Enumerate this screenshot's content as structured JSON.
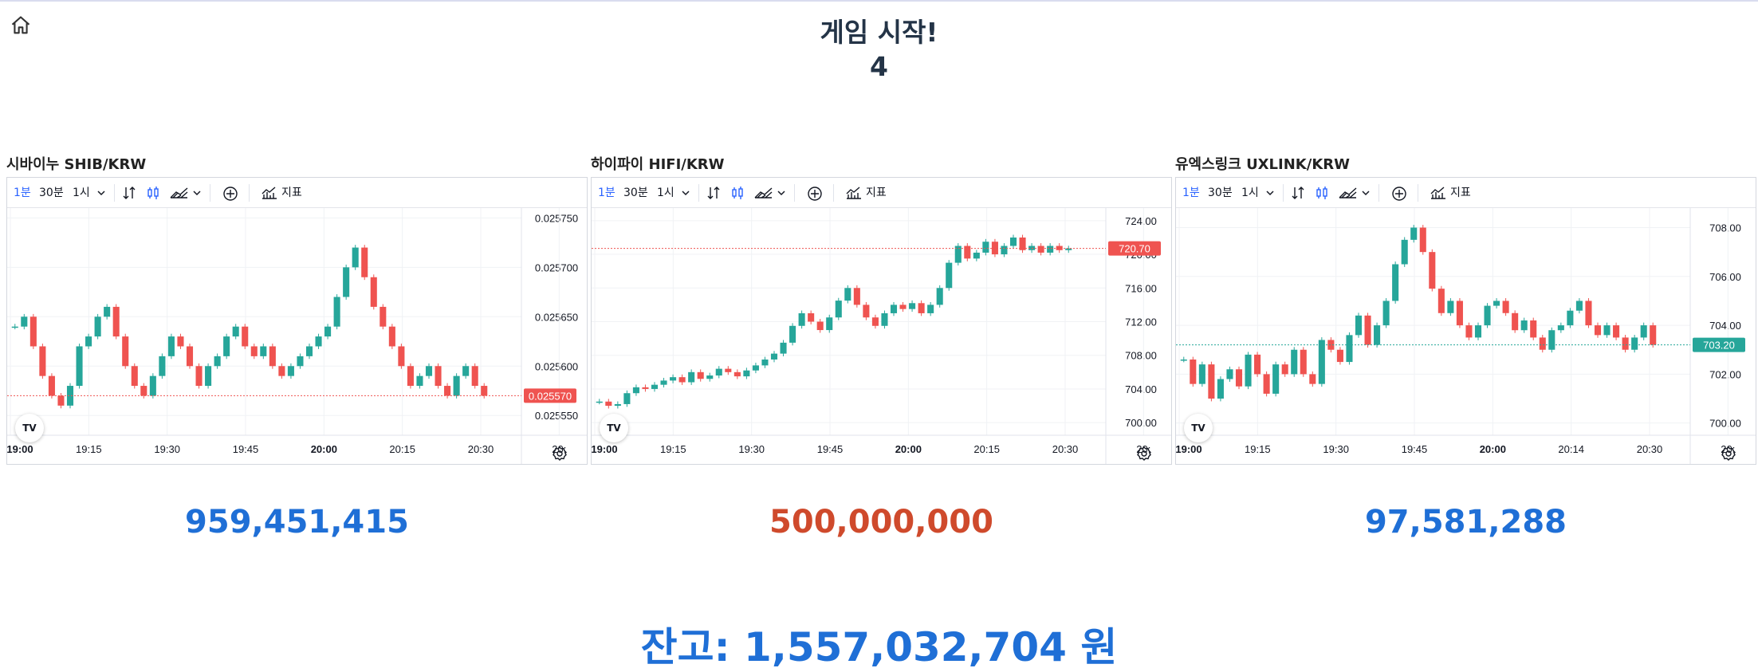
{
  "header": {
    "title": "게임 시작!",
    "countdown": "4"
  },
  "icons": {
    "home": "home-icon",
    "chart_type": "candles-icon",
    "indicators": "indicators-icon",
    "settings": "gear-icon",
    "add": "plus-circle-icon",
    "compare": "bars-compare-icon",
    "logo": "tradingview-logo-icon"
  },
  "colors": {
    "up": "#26a69a",
    "down": "#ef5350",
    "profit": "#1f6fd6",
    "loss": "#cf4a2c",
    "active_tab": "#2962ff"
  },
  "toolbar": {
    "intervals": [
      "1분",
      "30분",
      "1시"
    ],
    "active_interval": "1분",
    "indicators_label": "지표"
  },
  "panels": [
    {
      "name": "시바이누 SHIB/KRW",
      "amount": "959,451,415",
      "amount_color": "#1f6fd6",
      "price_scale": [
        "0.025750",
        "0.025700",
        "0.025650",
        "0.025600",
        "0.025550"
      ],
      "last_price": "0.025570",
      "last_color": "#ef5350",
      "time_scale": [
        "19:00",
        "19:15",
        "19:30",
        "19:45",
        "20:00",
        "20:15",
        "20:30",
        "20:"
      ],
      "chart_data": {
        "type": "candlestick",
        "x_start": "19:00",
        "interval": "1분",
        "closes": [
          0.02564,
          0.02565,
          0.02562,
          0.02559,
          0.02557,
          0.02556,
          0.02558,
          0.02562,
          0.02563,
          0.02565,
          0.02566,
          0.02563,
          0.0256,
          0.02558,
          0.02557,
          0.02559,
          0.02561,
          0.02563,
          0.02562,
          0.0256,
          0.02558,
          0.0256,
          0.02561,
          0.02563,
          0.02564,
          0.02562,
          0.02561,
          0.02562,
          0.0256,
          0.02559,
          0.0256,
          0.02561,
          0.02562,
          0.02563,
          0.02564,
          0.02567,
          0.0257,
          0.02572,
          0.02569,
          0.02566,
          0.02564,
          0.02562,
          0.0256,
          0.02558,
          0.02559,
          0.0256,
          0.02558,
          0.02557,
          0.02559,
          0.0256,
          0.02558,
          0.02557
        ],
        "ylim": [
          0.02553,
          0.02576
        ]
      }
    },
    {
      "name": "하이파이 HIFI/KRW",
      "amount": "500,000,000",
      "amount_color": "#cf4a2c",
      "price_scale": [
        "724.00",
        "720.00",
        "716.00",
        "712.00",
        "708.00",
        "704.00",
        "700.00"
      ],
      "last_price": "720.70",
      "last_color": "#ef5350",
      "time_scale": [
        "19:00",
        "19:15",
        "19:30",
        "19:45",
        "20:00",
        "20:15",
        "20:30",
        "20:"
      ],
      "chart_data": {
        "type": "candlestick",
        "x_start": "19:00",
        "interval": "1분",
        "closes": [
          702.5,
          702.0,
          702.2,
          703.5,
          704.2,
          704.0,
          704.5,
          705.0,
          705.4,
          704.8,
          706.0,
          705.2,
          705.6,
          706.4,
          706.0,
          705.5,
          706.2,
          706.8,
          707.5,
          708.2,
          709.5,
          711.5,
          713.0,
          712.0,
          711.0,
          712.5,
          714.5,
          716.0,
          714.0,
          712.5,
          711.5,
          713.0,
          714.0,
          713.5,
          714.2,
          713.0,
          714.0,
          716.0,
          719.0,
          721.0,
          719.5,
          720.2,
          721.5,
          720.0,
          721.0,
          722.0,
          720.5,
          721.0,
          720.2,
          721.0,
          720.5,
          720.7
        ],
        "ylim": [
          698.5,
          725.5
        ]
      }
    },
    {
      "name": "유엑스링크 UXLINK/KRW",
      "amount": "97,581,288",
      "amount_color": "#1f6fd6",
      "price_scale": [
        "708.00",
        "706.00",
        "704.00",
        "702.00",
        "700.00"
      ],
      "last_price": "703.20",
      "last_color": "#26a69a",
      "time_scale": [
        "19:00",
        "19:15",
        "19:30",
        "19:45",
        "20:00",
        "20:14",
        "20:30",
        "20:"
      ],
      "chart_data": {
        "type": "candlestick",
        "x_start": "19:00",
        "interval": "1분",
        "closes": [
          702.6,
          701.6,
          702.4,
          701.0,
          701.8,
          702.2,
          701.5,
          702.8,
          702.0,
          701.2,
          702.4,
          702.0,
          703.0,
          702.0,
          701.6,
          703.4,
          703.0,
          702.5,
          703.6,
          704.4,
          703.2,
          704.0,
          705.0,
          706.5,
          707.5,
          708.0,
          707.0,
          705.5,
          704.5,
          705.0,
          704.0,
          703.5,
          704.0,
          704.8,
          705.0,
          704.5,
          703.8,
          704.2,
          703.5,
          703.0,
          703.8,
          704.0,
          704.6,
          705.0,
          704.0,
          703.6,
          704.0,
          703.5,
          703.0,
          703.5,
          704.0,
          703.2
        ],
        "ylim": [
          699.5,
          708.8
        ]
      }
    }
  ],
  "footer": {
    "balance": "잔고: 1,557,032,704 원"
  }
}
